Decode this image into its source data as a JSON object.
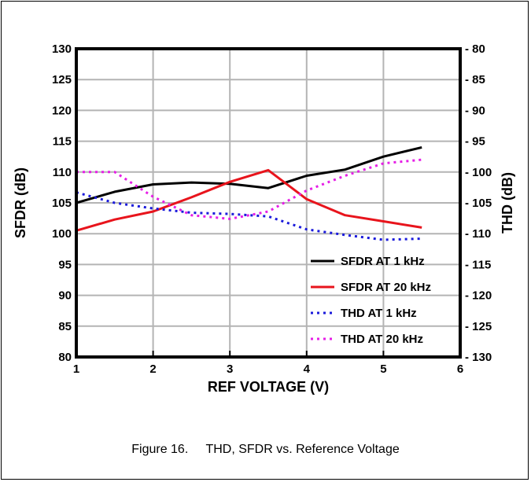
{
  "caption": {
    "figure_number": "Figure 16.",
    "title": "THD, SFDR vs. Reference Voltage"
  },
  "chart_data": {
    "type": "line",
    "xlabel": "REF VOLTAGE (V)",
    "ylabel": "SFDR (dB)",
    "y2label": "THD (dB)",
    "xlim": [
      1,
      6
    ],
    "ylim": [
      80,
      130
    ],
    "y2lim": [
      -130,
      -80
    ],
    "grid": true,
    "legend_position": "bottom-right",
    "x_ticks": [
      "1",
      "2",
      "3",
      "4",
      "5",
      "6"
    ],
    "y_ticks": [
      "130",
      "125",
      "120",
      "115",
      "110",
      "105",
      "100",
      "95",
      "90",
      "85",
      "80"
    ],
    "y2_ticks": [
      "- 80",
      "- 85",
      "- 90",
      "- 95",
      "- 100",
      "- 105",
      "- 110",
      "- 115",
      "- 120",
      "- 125",
      "- 130"
    ],
    "series": [
      {
        "name": "SFDR AT 1 kHz",
        "axis": "left",
        "color": "#000000",
        "style": "solid",
        "x": [
          1,
          1.5,
          2,
          2.5,
          3,
          3.5,
          4,
          4.5,
          5,
          5.5
        ],
        "values": [
          105.0,
          106.8,
          108.0,
          108.3,
          108.1,
          107.4,
          109.4,
          110.4,
          112.5,
          114.0
        ]
      },
      {
        "name": "SFDR AT 20 kHz",
        "axis": "left",
        "color": "#e8141c",
        "style": "solid",
        "x": [
          1,
          1.5,
          2,
          2.5,
          3,
          3.5,
          4,
          4.5,
          5,
          5.5
        ],
        "values": [
          100.5,
          102.3,
          103.6,
          105.9,
          108.4,
          110.3,
          105.6,
          103.0,
          102.0,
          101.0
        ]
      },
      {
        "name": "THD AT 1 kHz",
        "axis": "right",
        "color": "#1a1adb",
        "style": "dotted",
        "x": [
          1,
          1.5,
          2,
          2.5,
          3,
          3.5,
          4,
          4.5,
          5,
          5.5
        ],
        "values": [
          -103.3,
          -105.0,
          -105.9,
          -106.6,
          -106.8,
          -107.2,
          -109.3,
          -110.2,
          -111.0,
          -110.8
        ]
      },
      {
        "name": "THD AT 20 kHz",
        "axis": "right",
        "color": "#e61ee6",
        "style": "dotted",
        "x": [
          1,
          1.5,
          2,
          2.5,
          3,
          3.5,
          4,
          4.5,
          5,
          5.5
        ],
        "values": [
          -100.0,
          -100.0,
          -104.0,
          -107.0,
          -107.6,
          -106.4,
          -103.0,
          -100.6,
          -98.6,
          -98.0
        ]
      }
    ]
  }
}
